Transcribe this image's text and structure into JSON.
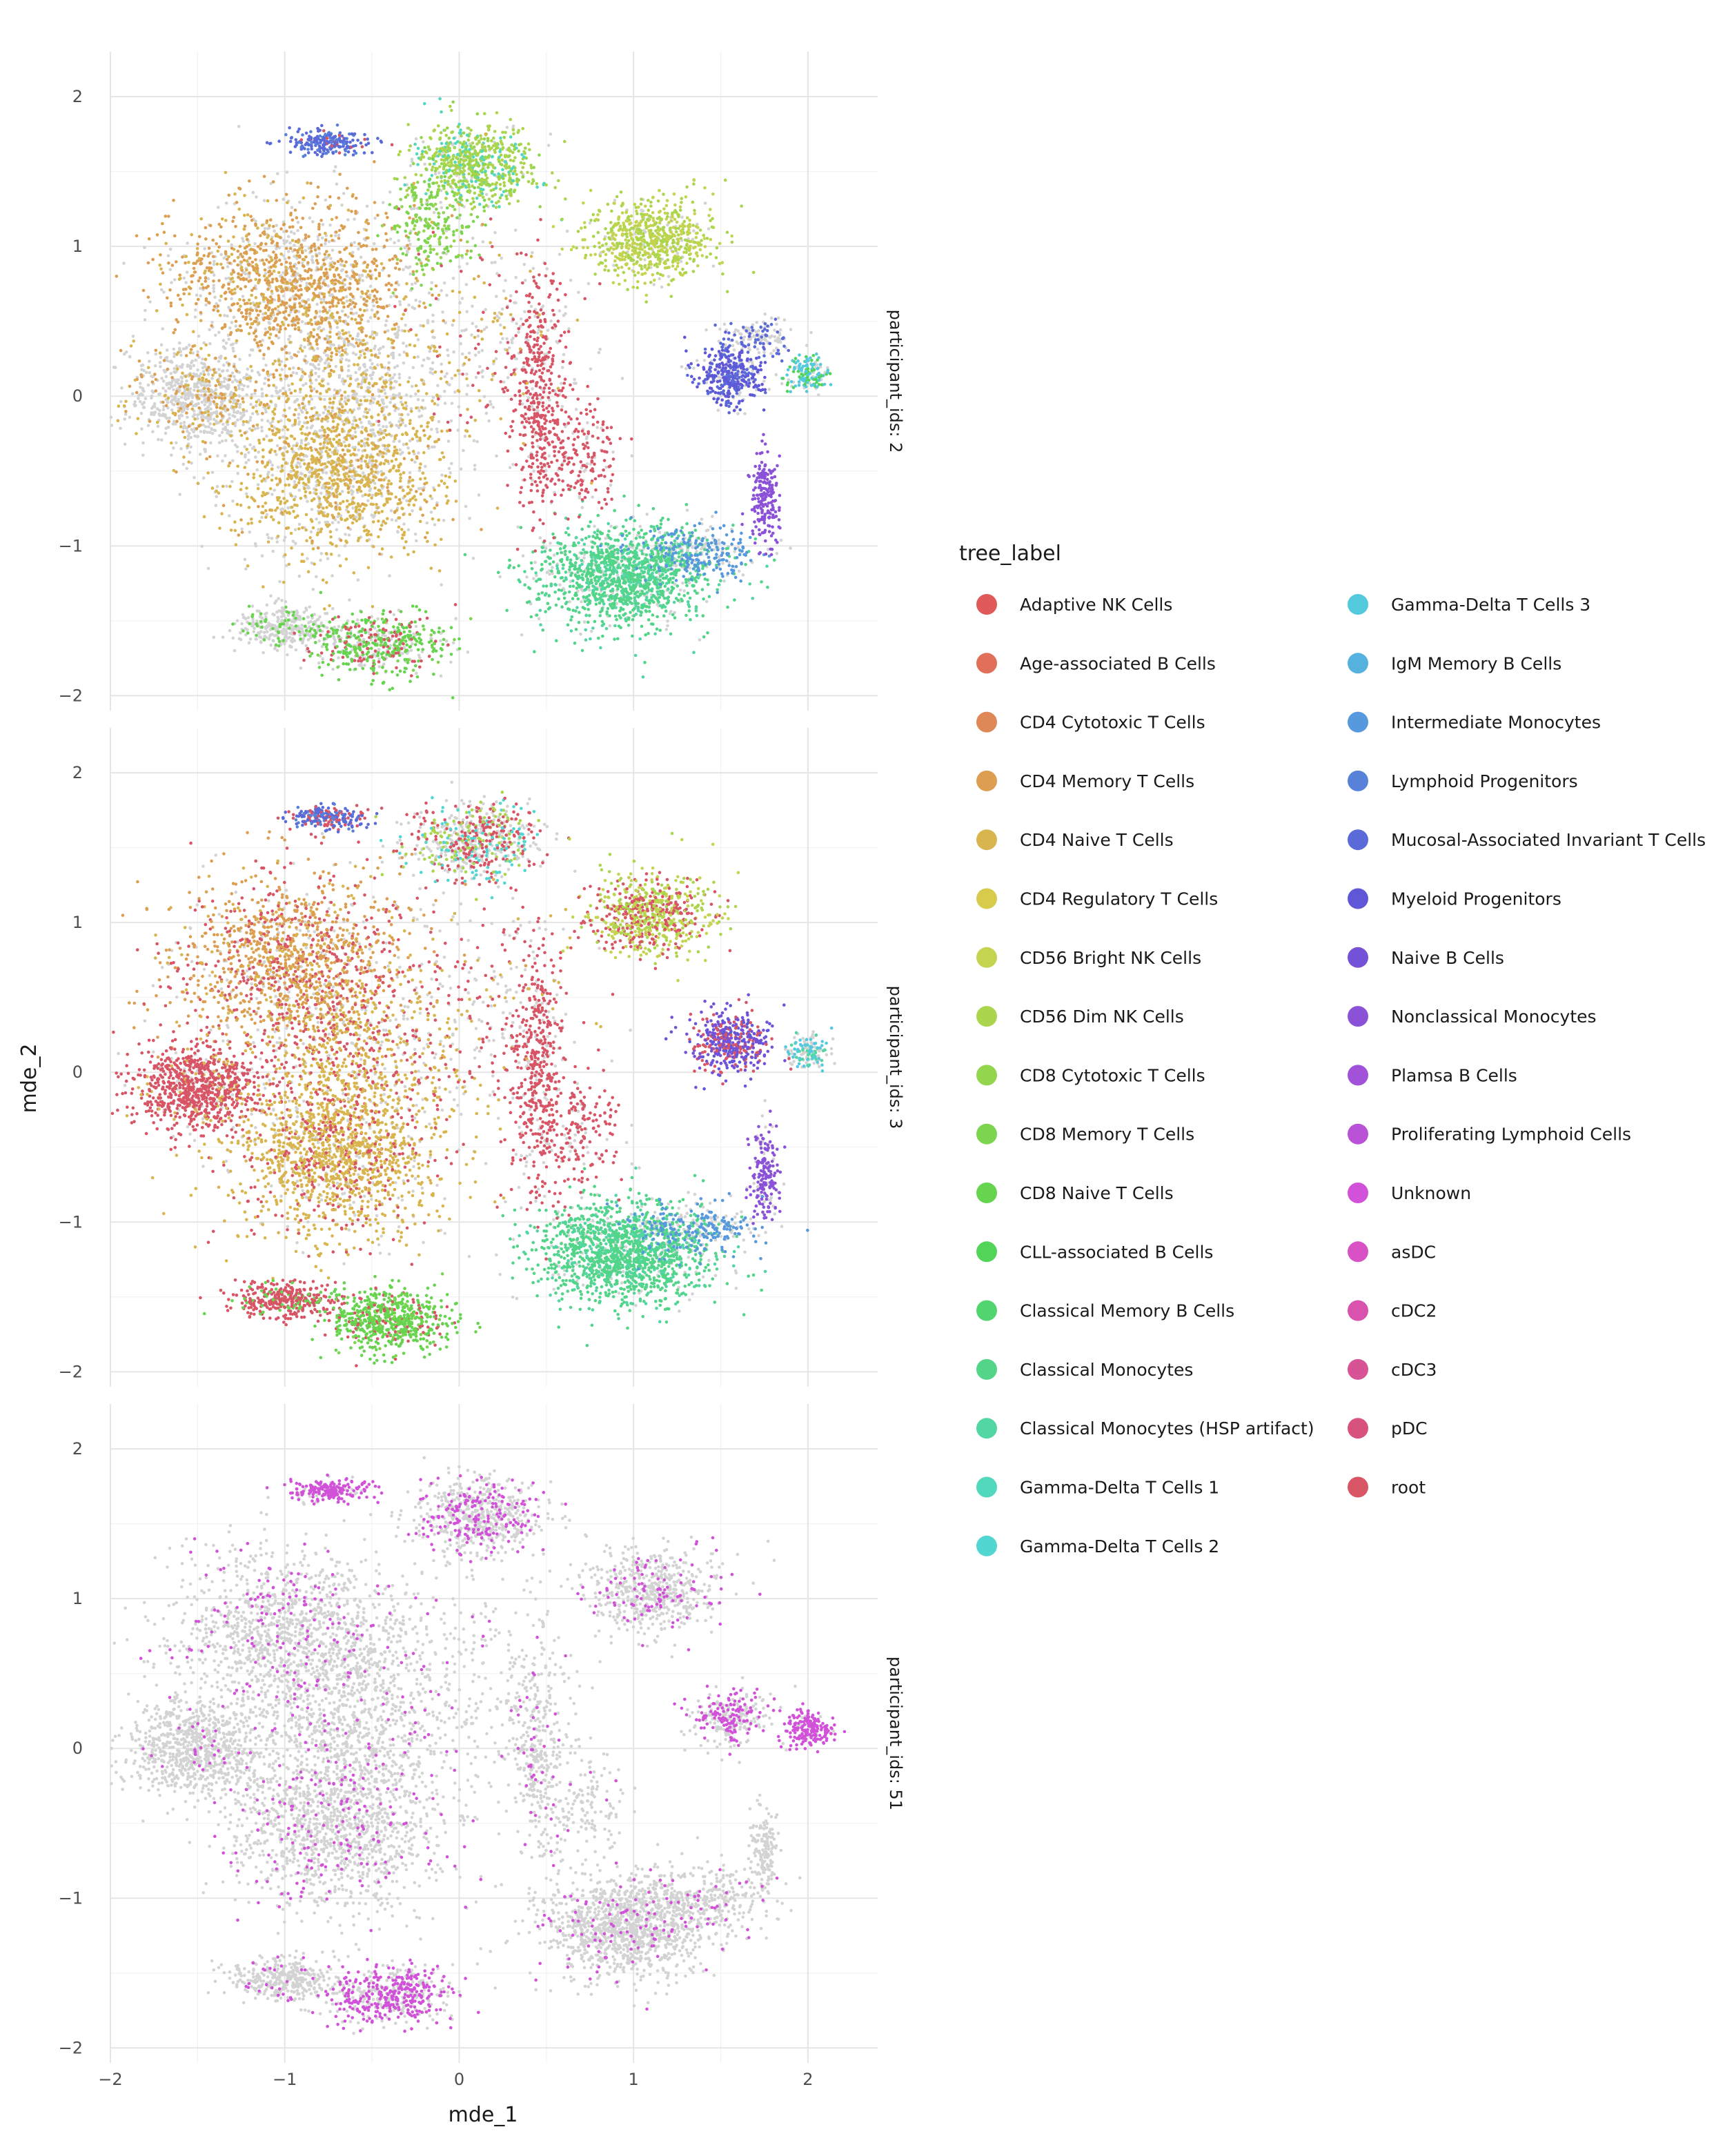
{
  "chart_data": {
    "type": "scatter",
    "xlabel": "mde_1",
    "ylabel": "mde_2",
    "xlim": [
      -2.0,
      2.4
    ],
    "ylim": [
      -2.1,
      2.3
    ],
    "x_ticks": [
      -2,
      -1,
      0,
      1,
      2
    ],
    "x_tick_labels": [
      "−2",
      "−1",
      "0",
      "1",
      "2"
    ],
    "y_ticks": [
      -2,
      -1,
      0,
      1,
      2
    ],
    "y_tick_labels": [
      "−2",
      "−1",
      "0",
      "1",
      "2"
    ],
    "grid": true,
    "legend_title": "tree_label",
    "legend_position": "right",
    "background_point_color": "#d3d3d3",
    "legend": [
      {
        "label": "Adaptive NK Cells",
        "color": "#e05a5a"
      },
      {
        "label": "Age-associated B Cells",
        "color": "#e0705a"
      },
      {
        "label": "CD4 Cytotoxic T Cells",
        "color": "#de8858"
      },
      {
        "label": "CD4 Memory T Cells",
        "color": "#dc9f52"
      },
      {
        "label": "CD4 Naive T Cells",
        "color": "#d9b54f"
      },
      {
        "label": "CD4 Regulatory T Cells",
        "color": "#d7cb4c"
      },
      {
        "label": "CD56 Bright NK Cells",
        "color": "#c4d450"
      },
      {
        "label": "CD56 Dim NK Cells",
        "color": "#acd54e"
      },
      {
        "label": "CD8 Cytotoxic T Cells",
        "color": "#94d54e"
      },
      {
        "label": "CD8 Memory T Cells",
        "color": "#7dd44e"
      },
      {
        "label": "CD8 Naive T Cells",
        "color": "#66d44e"
      },
      {
        "label": "CLL-associated B Cells",
        "color": "#52d458"
      },
      {
        "label": "Classical Memory B Cells",
        "color": "#52d46e"
      },
      {
        "label": "Classical Monocytes",
        "color": "#52d489"
      },
      {
        "label": "Classical Monocytes (HSP artifact)",
        "color": "#52d6a3"
      },
      {
        "label": "Gamma-Delta T Cells 1",
        "color": "#52d8bc"
      },
      {
        "label": "Gamma-Delta T Cells 2",
        "color": "#52d6d2"
      },
      {
        "label": "Gamma-Delta T Cells 3",
        "color": "#54cade"
      },
      {
        "label": "IgM Memory B Cells",
        "color": "#55b2de"
      },
      {
        "label": "Intermediate Monocytes",
        "color": "#5699dc"
      },
      {
        "label": "Lymphoid Progenitors",
        "color": "#5882da"
      },
      {
        "label": "Mucosal-Associated Invariant T Cells",
        "color": "#5a6ad8"
      },
      {
        "label": "Myeloid Progenitors",
        "color": "#5f57d8"
      },
      {
        "label": "Naive B Cells",
        "color": "#7452d8"
      },
      {
        "label": "Nonclassical Monocytes",
        "color": "#8b52d8"
      },
      {
        "label": "Plamsa B Cells",
        "color": "#a252d8"
      },
      {
        "label": "Proliferating Lymphoid Cells",
        "color": "#ba52d8"
      },
      {
        "label": "Unknown",
        "color": "#d152d8"
      },
      {
        "label": "asDC",
        "color": "#d852c6"
      },
      {
        "label": "cDC2",
        "color": "#d852ae"
      },
      {
        "label": "cDC3",
        "color": "#d85296"
      },
      {
        "label": "pDC",
        "color": "#d8527e"
      },
      {
        "label": "root",
        "color": "#d85566"
      }
    ],
    "facets": [
      {
        "strip_label": "participant_ids: 2",
        "clusters": [
          {
            "x": -1.5,
            "y": 0.0,
            "sx": 0.2,
            "sy": 0.17,
            "n": 800,
            "mix": {
              "bg": 0.8,
              "CD4 Naive T Cells": 0.1,
              "CD4 Memory T Cells": 0.1
            }
          },
          {
            "x": -0.95,
            "y": 0.75,
            "sx": 0.35,
            "sy": 0.28,
            "n": 1500,
            "mix": {
              "CD4 Memory T Cells": 0.55,
              "bg": 0.3,
              "CD4 Naive T Cells": 0.15
            }
          },
          {
            "x": -0.7,
            "y": -0.5,
            "sx": 0.3,
            "sy": 0.28,
            "n": 1500,
            "mix": {
              "CD4 Naive T Cells": 0.55,
              "bg": 0.35,
              "CD4 Memory T Cells": 0.1
            }
          },
          {
            "x": -0.6,
            "y": 0.15,
            "sx": 0.3,
            "sy": 0.25,
            "n": 600,
            "mix": {
              "bg": 0.7,
              "CD4 Naive T Cells": 0.3
            }
          },
          {
            "x": -0.75,
            "y": 1.7,
            "sx": 0.12,
            "sy": 0.04,
            "n": 220,
            "mix": {
              "Mucosal-Associated Invariant T Cells": 0.7,
              "Lymphoid Progenitors": 0.2,
              "root": 0.1
            }
          },
          {
            "x": 0.1,
            "y": 1.55,
            "sx": 0.18,
            "sy": 0.13,
            "n": 700,
            "mix": {
              "CD56 Dim NK Cells": 0.5,
              "Gamma-Delta T Cells 1": 0.2,
              "CD8 Cytotoxic T Cells": 0.2,
              "bg": 0.1
            }
          },
          {
            "x": -0.15,
            "y": 1.15,
            "sx": 0.12,
            "sy": 0.18,
            "n": 250,
            "mix": {
              "CD8 Memory T Cells": 0.6,
              "CD8 Cytotoxic T Cells": 0.3,
              "bg": 0.1
            }
          },
          {
            "x": 1.1,
            "y": 1.05,
            "sx": 0.18,
            "sy": 0.14,
            "n": 700,
            "mix": {
              "CD56 Bright NK Cells": 0.5,
              "CD56 Dim NK Cells": 0.4,
              "bg": 0.1
            }
          },
          {
            "x": 1.55,
            "y": 0.15,
            "sx": 0.1,
            "sy": 0.1,
            "n": 400,
            "mix": {
              "Myeloid Progenitors": 0.5,
              "Mucosal-Associated Invariant T Cells": 0.3,
              "bg": 0.2
            }
          },
          {
            "x": 1.7,
            "y": 0.4,
            "sx": 0.1,
            "sy": 0.06,
            "n": 150,
            "mix": {
              "bg": 0.6,
              "Mucosal-Associated Invariant T Cells": 0.4
            }
          },
          {
            "x": 2.0,
            "y": 0.15,
            "sx": 0.06,
            "sy": 0.06,
            "n": 150,
            "mix": {
              "Gamma-Delta T Cells 3": 0.5,
              "CLL-associated B Cells": 0.3,
              "bg": 0.2
            }
          },
          {
            "x": 0.95,
            "y": -1.2,
            "sx": 0.25,
            "sy": 0.17,
            "n": 1400,
            "mix": {
              "Classical Monocytes": 0.65,
              "Classical Monocytes (HSP artifact)": 0.2,
              "bg": 0.15
            }
          },
          {
            "x": 1.35,
            "y": -1.05,
            "sx": 0.18,
            "sy": 0.09,
            "n": 300,
            "mix": {
              "Intermediate Monocytes": 0.7,
              "bg": 0.3
            }
          },
          {
            "x": 1.75,
            "y": -0.7,
            "sx": 0.04,
            "sy": 0.15,
            "n": 200,
            "mix": {
              "Nonclassical Monocytes": 1.0
            }
          },
          {
            "x": -1.0,
            "y": -1.55,
            "sx": 0.15,
            "sy": 0.07,
            "n": 350,
            "mix": {
              "bg": 0.85,
              "CD8 Naive T Cells": 0.15
            }
          },
          {
            "x": -0.45,
            "y": -1.65,
            "sx": 0.2,
            "sy": 0.1,
            "n": 550,
            "mix": {
              "CD8 Naive T Cells": 0.45,
              "bg": 0.3,
              "root": 0.2,
              "CD8 Memory T Cells": 0.05
            }
          },
          {
            "x": 0.45,
            "y": 0.0,
            "sx": 0.08,
            "sy": 0.4,
            "n": 450,
            "mix": {
              "root": 0.9,
              "bg": 0.1
            }
          },
          {
            "x": 0.7,
            "y": -0.4,
            "sx": 0.12,
            "sy": 0.2,
            "n": 200,
            "mix": {
              "root": 0.8,
              "bg": 0.2
            }
          },
          {
            "x": 0.15,
            "y": 0.4,
            "sx": 0.3,
            "sy": 0.4,
            "n": 300,
            "mix": {
              "bg": 0.6,
              "root": 0.2,
              "CD4 Naive T Cells": 0.2
            }
          }
        ]
      },
      {
        "strip_label": "participant_ids: 3",
        "clusters": [
          {
            "x": -1.5,
            "y": -0.1,
            "sx": 0.18,
            "sy": 0.14,
            "n": 900,
            "mix": {
              "root": 0.85,
              "bg": 0.1,
              "CD4 Naive T Cells": 0.05
            }
          },
          {
            "x": -0.95,
            "y": 0.75,
            "sx": 0.35,
            "sy": 0.28,
            "n": 1500,
            "mix": {
              "CD4 Memory T Cells": 0.5,
              "root": 0.25,
              "CD4 Naive T Cells": 0.15,
              "bg": 0.1
            }
          },
          {
            "x": -0.7,
            "y": -0.55,
            "sx": 0.3,
            "sy": 0.28,
            "n": 1600,
            "mix": {
              "CD4 Naive T Cells": 0.7,
              "root": 0.2,
              "bg": 0.1
            }
          },
          {
            "x": -0.6,
            "y": 0.15,
            "sx": 0.3,
            "sy": 0.25,
            "n": 600,
            "mix": {
              "CD4 Naive T Cells": 0.5,
              "root": 0.3,
              "bg": 0.2
            }
          },
          {
            "x": -0.75,
            "y": 1.7,
            "sx": 0.12,
            "sy": 0.04,
            "n": 220,
            "mix": {
              "Mucosal-Associated Invariant T Cells": 0.5,
              "root": 0.3,
              "Lymphoid Progenitors": 0.2
            }
          },
          {
            "x": 0.1,
            "y": 1.55,
            "sx": 0.18,
            "sy": 0.13,
            "n": 700,
            "mix": {
              "bg": 0.4,
              "root": 0.25,
              "Gamma-Delta T Cells 2": 0.15,
              "CD56 Dim NK Cells": 0.2
            }
          },
          {
            "x": 1.1,
            "y": 1.05,
            "sx": 0.18,
            "sy": 0.14,
            "n": 700,
            "mix": {
              "CD56 Bright NK Cells": 0.4,
              "root": 0.35,
              "CD56 Dim NK Cells": 0.25
            }
          },
          {
            "x": 1.55,
            "y": 0.2,
            "sx": 0.11,
            "sy": 0.1,
            "n": 450,
            "mix": {
              "Naive B Cells": 0.5,
              "Myeloid Progenitors": 0.2,
              "root": 0.3
            }
          },
          {
            "x": 2.0,
            "y": 0.15,
            "sx": 0.06,
            "sy": 0.06,
            "n": 150,
            "mix": {
              "bg": 0.5,
              "Gamma-Delta T Cells 3": 0.3,
              "Classical Monocytes (HSP artifact)": 0.2
            }
          },
          {
            "x": 0.95,
            "y": -1.2,
            "sx": 0.25,
            "sy": 0.17,
            "n": 1500,
            "mix": {
              "Classical Monocytes": 0.75,
              "Classical Monocytes (HSP artifact)": 0.15,
              "bg": 0.1
            }
          },
          {
            "x": 1.35,
            "y": -1.05,
            "sx": 0.18,
            "sy": 0.09,
            "n": 300,
            "mix": {
              "Intermediate Monocytes": 0.6,
              "bg": 0.4
            }
          },
          {
            "x": 1.75,
            "y": -0.7,
            "sx": 0.04,
            "sy": 0.15,
            "n": 200,
            "mix": {
              "Nonclassical Monocytes": 0.8,
              "bg": 0.2
            }
          },
          {
            "x": -1.0,
            "y": -1.52,
            "sx": 0.15,
            "sy": 0.06,
            "n": 350,
            "mix": {
              "root": 0.85,
              "CD8 Naive T Cells": 0.15
            }
          },
          {
            "x": -0.4,
            "y": -1.65,
            "sx": 0.18,
            "sy": 0.1,
            "n": 650,
            "mix": {
              "CD8 Naive T Cells": 0.75,
              "root": 0.15,
              "CD8 Memory T Cells": 0.1
            }
          },
          {
            "x": 0.45,
            "y": 0.0,
            "sx": 0.08,
            "sy": 0.4,
            "n": 450,
            "mix": {
              "root": 0.85,
              "bg": 0.15
            }
          },
          {
            "x": 0.7,
            "y": -0.4,
            "sx": 0.12,
            "sy": 0.2,
            "n": 200,
            "mix": {
              "root": 0.85,
              "bg": 0.15
            }
          },
          {
            "x": 0.15,
            "y": 0.4,
            "sx": 0.3,
            "sy": 0.4,
            "n": 300,
            "mix": {
              "bg": 0.5,
              "root": 0.35,
              "CD4 Naive T Cells": 0.15
            }
          }
        ]
      },
      {
        "strip_label": "participant_ids: 51",
        "clusters": [
          {
            "x": -1.5,
            "y": 0.0,
            "sx": 0.2,
            "sy": 0.17,
            "n": 800,
            "mix": {
              "bg": 0.97,
              "Unknown": 0.03
            }
          },
          {
            "x": -0.95,
            "y": 0.75,
            "sx": 0.35,
            "sy": 0.28,
            "n": 1400,
            "mix": {
              "bg": 0.88,
              "Unknown": 0.12
            }
          },
          {
            "x": -0.7,
            "y": -0.5,
            "sx": 0.3,
            "sy": 0.28,
            "n": 1400,
            "mix": {
              "bg": 0.88,
              "Unknown": 0.12
            }
          },
          {
            "x": -0.6,
            "y": 0.15,
            "sx": 0.3,
            "sy": 0.25,
            "n": 600,
            "mix": {
              "bg": 0.92,
              "Unknown": 0.08
            }
          },
          {
            "x": -0.75,
            "y": 1.72,
            "sx": 0.12,
            "sy": 0.04,
            "n": 220,
            "mix": {
              "Unknown": 0.8,
              "bg": 0.2
            }
          },
          {
            "x": 0.1,
            "y": 1.55,
            "sx": 0.18,
            "sy": 0.13,
            "n": 650,
            "mix": {
              "bg": 0.7,
              "Unknown": 0.3
            }
          },
          {
            "x": 1.1,
            "y": 1.05,
            "sx": 0.18,
            "sy": 0.14,
            "n": 600,
            "mix": {
              "bg": 0.85,
              "Unknown": 0.15
            }
          },
          {
            "x": 1.55,
            "y": 0.2,
            "sx": 0.12,
            "sy": 0.1,
            "n": 300,
            "mix": {
              "bg": 0.6,
              "Unknown": 0.4
            }
          },
          {
            "x": 2.0,
            "y": 0.13,
            "sx": 0.07,
            "sy": 0.06,
            "n": 200,
            "mix": {
              "Unknown": 0.9,
              "bg": 0.1
            }
          },
          {
            "x": 0.95,
            "y": -1.2,
            "sx": 0.25,
            "sy": 0.17,
            "n": 1200,
            "mix": {
              "bg": 0.92,
              "Unknown": 0.08
            }
          },
          {
            "x": 1.4,
            "y": -1.0,
            "sx": 0.2,
            "sy": 0.1,
            "n": 300,
            "mix": {
              "bg": 0.92,
              "Unknown": 0.08
            }
          },
          {
            "x": 1.75,
            "y": -0.7,
            "sx": 0.04,
            "sy": 0.15,
            "n": 150,
            "mix": {
              "bg": 1.0
            }
          },
          {
            "x": -1.0,
            "y": -1.55,
            "sx": 0.15,
            "sy": 0.07,
            "n": 350,
            "mix": {
              "bg": 0.95,
              "Unknown": 0.05
            }
          },
          {
            "x": -0.4,
            "y": -1.65,
            "sx": 0.18,
            "sy": 0.1,
            "n": 550,
            "mix": {
              "Unknown": 0.55,
              "bg": 0.45
            }
          },
          {
            "x": 0.45,
            "y": 0.0,
            "sx": 0.08,
            "sy": 0.4,
            "n": 350,
            "mix": {
              "bg": 0.9,
              "Unknown": 0.1
            }
          },
          {
            "x": 0.7,
            "y": -0.4,
            "sx": 0.12,
            "sy": 0.2,
            "n": 150,
            "mix": {
              "bg": 0.95,
              "Unknown": 0.05
            }
          },
          {
            "x": 0.15,
            "y": 0.4,
            "sx": 0.3,
            "sy": 0.4,
            "n": 250,
            "mix": {
              "bg": 0.95,
              "Unknown": 0.05
            }
          }
        ]
      }
    ]
  }
}
